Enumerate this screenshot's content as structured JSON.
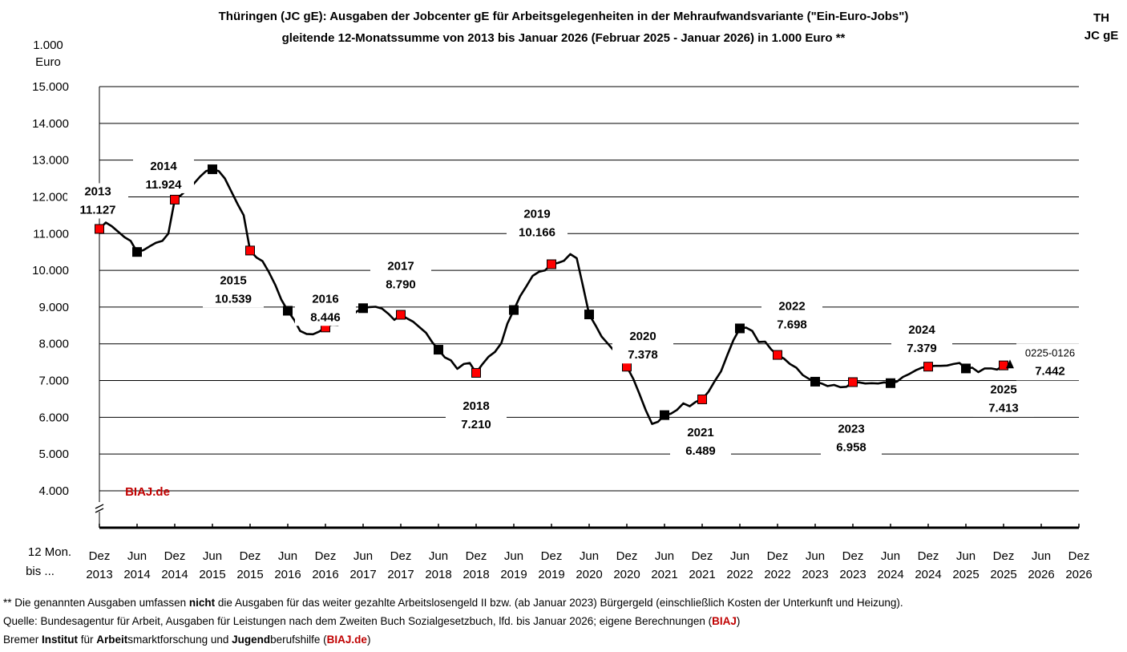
{
  "chart_data": {
    "type": "line",
    "title": "Thüringen (JC gE): Ausgaben der Jobcenter gE für Arbeitsgelegenheiten in der Mehraufwandsvariante (\"Ein-Euro-Jobs\")",
    "subtitle": "gleitende 12-Monatssumme von 2013 bis Januar 2026 (Februar 2025 - Januar 2026) in 1.000 Euro **",
    "corner_label": [
      "TH",
      "JC gE"
    ],
    "ylabel": [
      "1.000",
      "Euro"
    ],
    "xlabel": [
      "12 Mon.",
      "bis ..."
    ],
    "ylim": [
      4000,
      15000
    ],
    "yticks": [
      "4.000",
      "5.000",
      "6.000",
      "7.000",
      "8.000",
      "9.000",
      "10.000",
      "11.000",
      "12.000",
      "13.000",
      "14.000",
      "15.000"
    ],
    "xticks": [
      [
        "Dez",
        "2013"
      ],
      [
        "Jun",
        "2014"
      ],
      [
        "Dez",
        "2014"
      ],
      [
        "Jun",
        "2015"
      ],
      [
        "Dez",
        "2015"
      ],
      [
        "Jun",
        "2016"
      ],
      [
        "Dez",
        "2016"
      ],
      [
        "Jun",
        "2017"
      ],
      [
        "Dez",
        "2017"
      ],
      [
        "Jun",
        "2018"
      ],
      [
        "Dez",
        "2018"
      ],
      [
        "Jun",
        "2019"
      ],
      [
        "Dez",
        "2019"
      ],
      [
        "Jun",
        "2020"
      ],
      [
        "Dez",
        "2020"
      ],
      [
        "Jun",
        "2021"
      ],
      [
        "Dez",
        "2021"
      ],
      [
        "Jun",
        "2022"
      ],
      [
        "Dez",
        "2022"
      ],
      [
        "Jun",
        "2023"
      ],
      [
        "Dez",
        "2023"
      ],
      [
        "Jun",
        "2024"
      ],
      [
        "Dez",
        "2024"
      ],
      [
        "Jun",
        "2025"
      ],
      [
        "Dez",
        "2025"
      ],
      [
        "Jun",
        "2026"
      ],
      [
        "Dez",
        "2026"
      ]
    ],
    "series": [
      {
        "name": "gleitende 12-Monatssumme",
        "points": [
          [
            0,
            11127
          ],
          [
            0.17,
            11300
          ],
          [
            0.33,
            11200
          ],
          [
            0.5,
            11050
          ],
          [
            0.67,
            10900
          ],
          [
            0.83,
            10800
          ],
          [
            1,
            10500
          ],
          [
            1.17,
            10550
          ],
          [
            1.33,
            10650
          ],
          [
            1.5,
            10750
          ],
          [
            1.67,
            10800
          ],
          [
            1.83,
            11000
          ],
          [
            2,
            11924
          ],
          [
            2.17,
            12050
          ],
          [
            2.33,
            12200
          ],
          [
            2.5,
            12350
          ],
          [
            2.67,
            12550
          ],
          [
            2.83,
            12700
          ],
          [
            3,
            12750
          ],
          [
            3.17,
            12700
          ],
          [
            3.33,
            12500
          ],
          [
            3.5,
            12150
          ],
          [
            3.67,
            11800
          ],
          [
            3.83,
            11500
          ],
          [
            4,
            10539
          ],
          [
            4.17,
            10350
          ],
          [
            4.33,
            10250
          ],
          [
            4.5,
            9950
          ],
          [
            4.67,
            9600
          ],
          [
            4.83,
            9200
          ],
          [
            5,
            8900
          ],
          [
            5.17,
            8650
          ],
          [
            5.33,
            8350
          ],
          [
            5.5,
            8270
          ],
          [
            5.67,
            8260
          ],
          [
            5.83,
            8330
          ],
          [
            6,
            8446
          ],
          [
            6.17,
            8520
          ],
          [
            6.33,
            8510
          ],
          [
            6.5,
            8600
          ],
          [
            6.67,
            8720
          ],
          [
            6.83,
            8880
          ],
          [
            7,
            8970
          ],
          [
            7.17,
            9000
          ],
          [
            7.33,
            9010
          ],
          [
            7.5,
            8960
          ],
          [
            7.67,
            8820
          ],
          [
            7.83,
            8650
          ],
          [
            8,
            8790
          ],
          [
            8.17,
            8690
          ],
          [
            8.33,
            8600
          ],
          [
            8.5,
            8450
          ],
          [
            8.67,
            8300
          ],
          [
            8.83,
            8050
          ],
          [
            9,
            7840
          ],
          [
            9.17,
            7630
          ],
          [
            9.33,
            7550
          ],
          [
            9.5,
            7320
          ],
          [
            9.67,
            7450
          ],
          [
            9.83,
            7480
          ],
          [
            10,
            7210
          ],
          [
            10.17,
            7450
          ],
          [
            10.33,
            7650
          ],
          [
            10.5,
            7780
          ],
          [
            10.67,
            8020
          ],
          [
            10.83,
            8550
          ],
          [
            11,
            8920
          ],
          [
            11.17,
            9300
          ],
          [
            11.33,
            9560
          ],
          [
            11.5,
            9850
          ],
          [
            11.67,
            9960
          ],
          [
            11.83,
            10000
          ],
          [
            12,
            10166
          ],
          [
            12.17,
            10200
          ],
          [
            12.33,
            10260
          ],
          [
            12.5,
            10440
          ],
          [
            12.67,
            10330
          ],
          [
            12.83,
            9600
          ],
          [
            13,
            8800
          ],
          [
            13.17,
            8500
          ],
          [
            13.33,
            8200
          ],
          [
            13.5,
            8000
          ],
          [
            13.67,
            7800
          ],
          [
            13.83,
            7600
          ],
          [
            14,
            7378
          ],
          [
            14.17,
            7050
          ],
          [
            14.33,
            6650
          ],
          [
            14.5,
            6200
          ],
          [
            14.67,
            5820
          ],
          [
            14.83,
            5880
          ],
          [
            15,
            6060
          ],
          [
            15.17,
            6100
          ],
          [
            15.33,
            6200
          ],
          [
            15.5,
            6380
          ],
          [
            15.67,
            6300
          ],
          [
            15.83,
            6420
          ],
          [
            16,
            6489
          ],
          [
            16.17,
            6700
          ],
          [
            16.33,
            6980
          ],
          [
            16.5,
            7250
          ],
          [
            16.67,
            7700
          ],
          [
            16.83,
            8100
          ],
          [
            17,
            8420
          ],
          [
            17.17,
            8440
          ],
          [
            17.33,
            8350
          ],
          [
            17.5,
            8050
          ],
          [
            17.67,
            8060
          ],
          [
            17.83,
            7850
          ],
          [
            18,
            7698
          ],
          [
            18.17,
            7600
          ],
          [
            18.33,
            7450
          ],
          [
            18.5,
            7350
          ],
          [
            18.67,
            7150
          ],
          [
            18.83,
            7050
          ],
          [
            19,
            6970
          ],
          [
            19.17,
            6920
          ],
          [
            19.33,
            6850
          ],
          [
            19.5,
            6880
          ],
          [
            19.67,
            6820
          ],
          [
            19.83,
            6830
          ],
          [
            20,
            6958
          ],
          [
            20.17,
            6950
          ],
          [
            20.33,
            6920
          ],
          [
            20.5,
            6930
          ],
          [
            20.67,
            6920
          ],
          [
            20.83,
            6950
          ],
          [
            21,
            6930
          ],
          [
            21.17,
            6970
          ],
          [
            21.33,
            7100
          ],
          [
            21.5,
            7180
          ],
          [
            21.67,
            7280
          ],
          [
            21.83,
            7350
          ],
          [
            22,
            7379
          ],
          [
            22.17,
            7400
          ],
          [
            22.33,
            7400
          ],
          [
            22.5,
            7410
          ],
          [
            22.67,
            7450
          ],
          [
            22.83,
            7480
          ],
          [
            23,
            7330
          ],
          [
            23.17,
            7350
          ],
          [
            23.33,
            7230
          ],
          [
            23.5,
            7330
          ],
          [
            23.67,
            7330
          ],
          [
            23.83,
            7300
          ],
          [
            24,
            7413
          ],
          [
            24.17,
            7442
          ]
        ]
      }
    ],
    "markers": [
      {
        "x": 0,
        "y": 11127,
        "kind": "dec"
      },
      {
        "x": 1,
        "y": 10500,
        "kind": "jun"
      },
      {
        "x": 2,
        "y": 11924,
        "kind": "dec"
      },
      {
        "x": 3,
        "y": 12750,
        "kind": "jun"
      },
      {
        "x": 4,
        "y": 10539,
        "kind": "dec"
      },
      {
        "x": 5,
        "y": 8900,
        "kind": "jun"
      },
      {
        "x": 6,
        "y": 8446,
        "kind": "dec"
      },
      {
        "x": 7,
        "y": 8970,
        "kind": "jun"
      },
      {
        "x": 8,
        "y": 8790,
        "kind": "dec"
      },
      {
        "x": 9,
        "y": 7840,
        "kind": "jun"
      },
      {
        "x": 10,
        "y": 7210,
        "kind": "dec"
      },
      {
        "x": 11,
        "y": 8920,
        "kind": "jun"
      },
      {
        "x": 12,
        "y": 10166,
        "kind": "dec"
      },
      {
        "x": 13,
        "y": 8800,
        "kind": "jun"
      },
      {
        "x": 14,
        "y": 7378,
        "kind": "dec"
      },
      {
        "x": 15,
        "y": 6060,
        "kind": "jun"
      },
      {
        "x": 16,
        "y": 6489,
        "kind": "dec"
      },
      {
        "x": 17,
        "y": 8420,
        "kind": "jun"
      },
      {
        "x": 18,
        "y": 7698,
        "kind": "dec"
      },
      {
        "x": 19,
        "y": 6970,
        "kind": "jun"
      },
      {
        "x": 20,
        "y": 6958,
        "kind": "dec"
      },
      {
        "x": 21,
        "y": 6930,
        "kind": "jun"
      },
      {
        "x": 22,
        "y": 7379,
        "kind": "dec"
      },
      {
        "x": 23,
        "y": 7330,
        "kind": "jun"
      },
      {
        "x": 24,
        "y": 7413,
        "kind": "dec"
      },
      {
        "x": 24.17,
        "y": 7442,
        "kind": "latest"
      }
    ],
    "annotations": [
      {
        "year": "2013",
        "value": "11.127",
        "x": 0,
        "y": 11127
      },
      {
        "year": "2014",
        "value": "11.924",
        "x": 2,
        "y": 11924
      },
      {
        "year": "2015",
        "value": "10.539",
        "x": 4,
        "y": 10539
      },
      {
        "year": "2016",
        "value": "8.446",
        "x": 6,
        "y": 8446
      },
      {
        "year": "2017",
        "value": "8.790",
        "x": 8,
        "y": 8790
      },
      {
        "year": "2018",
        "value": "7.210",
        "x": 10,
        "y": 7210
      },
      {
        "year": "2019",
        "value": "10.166",
        "x": 12,
        "y": 10166
      },
      {
        "year": "2020",
        "value": "7.378",
        "x": 14,
        "y": 7378
      },
      {
        "year": "2021",
        "value": "6.489",
        "x": 16,
        "y": 6489
      },
      {
        "year": "2022",
        "value": "7.698",
        "x": 18,
        "y": 7698
      },
      {
        "year": "2023",
        "value": "6.958",
        "x": 20,
        "y": 6958
      },
      {
        "year": "2024",
        "value": "7.379",
        "x": 22,
        "y": 7379
      },
      {
        "year": "2025",
        "value": "7.413",
        "x": 24,
        "y": 7413
      }
    ],
    "latest": {
      "period": "0225-0126",
      "value": "7.442"
    },
    "watermark": "BIAJ.de",
    "colors": {
      "line": "#000000",
      "dec_marker": "#ff0000",
      "jun_marker": "#000000",
      "grid": "#000000",
      "accent": "#c00000"
    }
  },
  "footnotes": {
    "line1": {
      "a": "** Die genannten Ausgaben umfassen ",
      "b": "nicht",
      "c": " die Ausgaben für das weiter gezahlte Arbeitslosengeld II bzw. (ab Januar 2023) Bürgergeld (einschließlich Kosten der Unterkunft und Heizung)."
    },
    "line2": {
      "a": "Quelle: Bundesagentur für Arbeit, Ausgaben für Leistungen nach dem Zweiten Buch Sozialgesetzbuch, lfd. bis Januar 2026; eigene Berechnungen (",
      "b": "BIAJ",
      "c": ")"
    },
    "line3": {
      "a": "Bremer ",
      "b": "Institut",
      "c": " für ",
      "d": "Arbeit",
      "e": "smarktforschung und ",
      "f": "Jugend",
      "g": "berufshilfe (",
      "h": "BIAJ.de",
      "i": ")"
    }
  }
}
